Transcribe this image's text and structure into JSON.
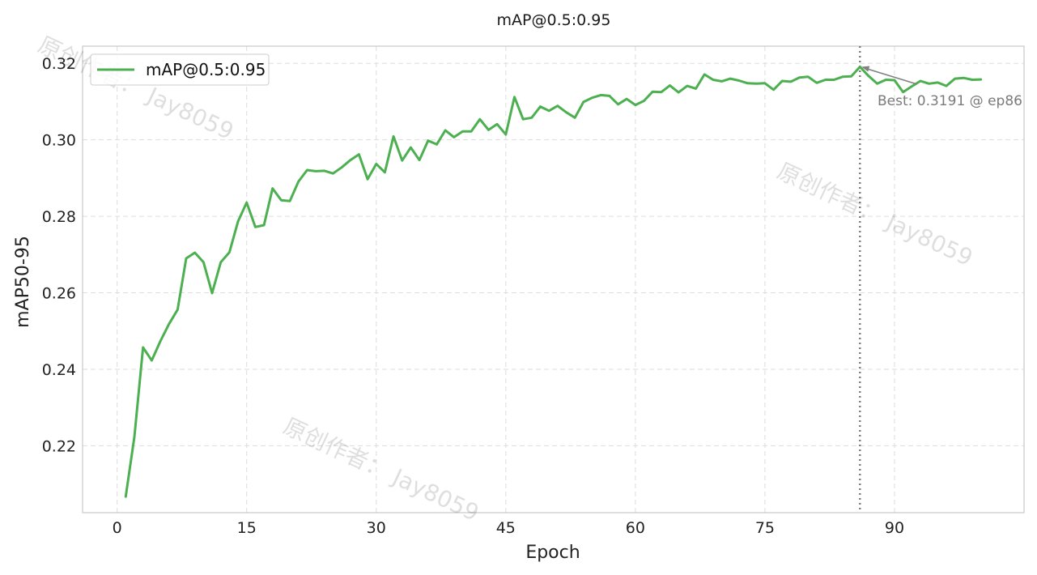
{
  "chart_data": {
    "type": "line",
    "title": "mAP@0.5:0.95",
    "xlabel": "Epoch",
    "ylabel": "mAP50-95",
    "xlim": [
      -4,
      105
    ],
    "ylim": [
      0.2025,
      0.3245
    ],
    "xticks": [
      0,
      15,
      30,
      45,
      60,
      75,
      90
    ],
    "yticks": [
      0.22,
      0.24,
      0.26,
      0.28,
      0.3,
      0.32
    ],
    "ytick_labels": [
      "0.22",
      "0.24",
      "0.26",
      "0.28",
      "0.30",
      "0.32"
    ],
    "grid": true,
    "legend_position": "top-left",
    "series": [
      {
        "name": "mAP@0.5:0.95",
        "color": "#4CAF50",
        "x": [
          1,
          2,
          3,
          4,
          5,
          6,
          7,
          8,
          9,
          10,
          11,
          12,
          13,
          14,
          15,
          16,
          17,
          18,
          19,
          20,
          21,
          22,
          23,
          24,
          25,
          26,
          27,
          28,
          29,
          30,
          31,
          32,
          33,
          34,
          35,
          36,
          37,
          38,
          39,
          40,
          41,
          42,
          43,
          44,
          45,
          46,
          47,
          48,
          49,
          50,
          51,
          52,
          53,
          54,
          55,
          56,
          57,
          58,
          59,
          60,
          61,
          62,
          63,
          64,
          65,
          66,
          67,
          68,
          69,
          70,
          71,
          72,
          73,
          74,
          75,
          76,
          77,
          78,
          79,
          80,
          81,
          82,
          83,
          84,
          85,
          86,
          87,
          88,
          89,
          90,
          91,
          92,
          93,
          94,
          95,
          96,
          97,
          98,
          99,
          100
        ],
        "y": [
          0.2067,
          0.2223,
          0.2457,
          0.2423,
          0.2473,
          0.2518,
          0.2556,
          0.269,
          0.2705,
          0.268,
          0.2599,
          0.268,
          0.2706,
          0.2787,
          0.2836,
          0.2772,
          0.2777,
          0.2873,
          0.2842,
          0.284,
          0.2891,
          0.2921,
          0.2918,
          0.2919,
          0.2912,
          0.2928,
          0.2947,
          0.2962,
          0.2897,
          0.2937,
          0.2915,
          0.3009,
          0.2946,
          0.298,
          0.2947,
          0.2998,
          0.2988,
          0.3025,
          0.3007,
          0.3022,
          0.3022,
          0.3054,
          0.3026,
          0.3041,
          0.3014,
          0.3112,
          0.3054,
          0.3058,
          0.3087,
          0.3076,
          0.3089,
          0.3072,
          0.3058,
          0.3099,
          0.311,
          0.3117,
          0.3115,
          0.3093,
          0.3107,
          0.3091,
          0.3102,
          0.3126,
          0.3125,
          0.3142,
          0.3124,
          0.3141,
          0.3134,
          0.3171,
          0.3157,
          0.3153,
          0.316,
          0.3155,
          0.3148,
          0.3147,
          0.3148,
          0.3131,
          0.3154,
          0.3152,
          0.3163,
          0.3165,
          0.3149,
          0.3157,
          0.3157,
          0.3165,
          0.3166,
          0.3191,
          0.3167,
          0.3147,
          0.3157,
          0.3156,
          0.3125,
          0.314,
          0.3154,
          0.3147,
          0.315,
          0.3141,
          0.316,
          0.3162,
          0.3157,
          0.3158
        ]
      }
    ],
    "best_marker": {
      "epoch": 86,
      "value": 0.3191,
      "label": "Best: 0.3191 @ ep86"
    },
    "watermarks": [
      "原创作者： Jay8059",
      "原创作者： Jay8059",
      "原创作者： Jay8059"
    ]
  }
}
